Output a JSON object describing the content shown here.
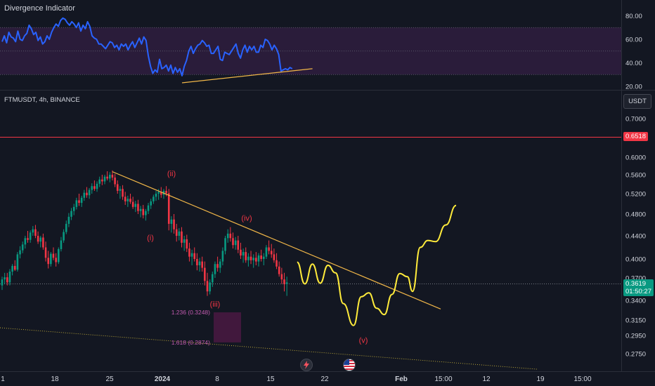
{
  "indicator": {
    "title": "Divergence Indicator",
    "axis_ticks": [
      {
        "value": 80,
        "label": "80.00"
      },
      {
        "value": 60,
        "label": "60.00"
      },
      {
        "value": 40,
        "label": "40.00"
      },
      {
        "value": 20,
        "label": "20.00"
      }
    ],
    "band": [
      30,
      70
    ],
    "midline": 50,
    "line_color": "#2962ff",
    "band_color": "#2a1c3a",
    "series": [
      58,
      63,
      57,
      66,
      62,
      61,
      58,
      67,
      60,
      59,
      63,
      65,
      72,
      69,
      64,
      66,
      59,
      62,
      56,
      58,
      63,
      60,
      66,
      70,
      73,
      71,
      76,
      78,
      77,
      74,
      72,
      75,
      73,
      70,
      74,
      67,
      72,
      69,
      75,
      71,
      63,
      61,
      60,
      56,
      56,
      54,
      52,
      55,
      58,
      57,
      53,
      55,
      51,
      56,
      54,
      56,
      51,
      55,
      58,
      53,
      57,
      61,
      56,
      62,
      59,
      46,
      37,
      31,
      34,
      32,
      43,
      35,
      36,
      38,
      33,
      38,
      31,
      36,
      32,
      35,
      29,
      37,
      42,
      50,
      54,
      48,
      52,
      55,
      56,
      59,
      57,
      54,
      55,
      48,
      48,
      51,
      54,
      43,
      42,
      49,
      48,
      47,
      50,
      53,
      56,
      48,
      44,
      51,
      55,
      49,
      54,
      51,
      54,
      49,
      49,
      55,
      53,
      60,
      59,
      56,
      51,
      55,
      52,
      47,
      33,
      34,
      35,
      34,
      36,
      35
    ],
    "divergence_line": {
      "from": {
        "index": 80,
        "value": 23
      },
      "to": {
        "index": 138,
        "value": 35
      }
    }
  },
  "chart": {
    "symbol": "FTMUSDT, 4h, BINANCE",
    "currency_button": "USDT",
    "price_ticks": [
      {
        "value": 0.7,
        "label": "0.7000"
      },
      {
        "value": 0.6,
        "label": "0.6000"
      },
      {
        "value": 0.56,
        "label": "0.5600"
      },
      {
        "value": 0.52,
        "label": "0.5200"
      },
      {
        "value": 0.48,
        "label": "0.4800"
      },
      {
        "value": 0.44,
        "label": "0.4400"
      },
      {
        "value": 0.4,
        "label": "0.4000"
      },
      {
        "value": 0.37,
        "label": "0.3700"
      },
      {
        "value": 0.34,
        "label": "0.3400"
      },
      {
        "value": 0.315,
        "label": "0.3150"
      },
      {
        "value": 0.295,
        "label": "0.2950"
      },
      {
        "value": 0.275,
        "label": "0.2750"
      }
    ],
    "resistance": {
      "price": 0.6518,
      "label": "0.6518",
      "color": "#f23645"
    },
    "current": {
      "price": 0.3619,
      "label": "0.3619",
      "countdown": "01:50:27",
      "color": "#089981"
    },
    "time_labels": [
      "1",
      "18",
      "25",
      "2024",
      "8",
      "15",
      "22",
      "Feb",
      "15:00",
      "12",
      "19",
      "15:00"
    ],
    "wave_labels": [
      {
        "text": "(i)",
        "bar": 55,
        "price": 0.432
      },
      {
        "text": "(ii)",
        "bar": 64,
        "price": 0.557
      },
      {
        "text": "(iii)",
        "bar": 82,
        "price": 0.332
      },
      {
        "text": "(iv)",
        "bar": 93,
        "price": 0.468
      },
      {
        "text": "(v)",
        "bar": 0,
        "price": 0.287
      }
    ],
    "fib_levels": [
      {
        "text": "1.236 (0.3248)",
        "price": 0.3248
      },
      {
        "text": "1.618 (0.2874)",
        "price": 0.2874
      }
    ],
    "fib_zone": {
      "top": 0.3248,
      "bottom": 0.2874
    },
    "trendline": {
      "from": {
        "bar": 43,
        "price": 0.567
      },
      "to": {
        "bar": 0,
        "price": 0.329
      }
    },
    "lower_line": {
      "from": {
        "bar": 0,
        "price": 0.305
      },
      "to": {
        "bar": 0,
        "price": 0.258
      }
    },
    "projection_color": "#ffeb3b",
    "projection": [
      [
        115,
        0.395
      ],
      [
        118,
        0.362
      ],
      [
        121,
        0.392
      ],
      [
        124,
        0.363
      ],
      [
        127,
        0.39
      ],
      [
        130,
        0.378
      ],
      [
        133,
        0.336
      ],
      [
        137,
        0.308
      ],
      [
        140,
        0.345
      ],
      [
        143,
        0.35
      ],
      [
        146,
        0.33
      ],
      [
        149,
        0.322
      ],
      [
        152,
        0.348
      ],
      [
        155,
        0.377
      ],
      [
        158,
        0.372
      ],
      [
        160,
        0.352
      ],
      [
        163,
        0.42
      ],
      [
        166,
        0.432
      ],
      [
        169,
        0.43
      ],
      [
        173,
        0.46
      ],
      [
        177,
        0.497
      ]
    ],
    "candles": [
      [
        0.36,
        0.372,
        0.354,
        0.368
      ],
      [
        0.368,
        0.378,
        0.362,
        0.371
      ],
      [
        0.371,
        0.378,
        0.36,
        0.364
      ],
      [
        0.364,
        0.384,
        0.36,
        0.38
      ],
      [
        0.38,
        0.392,
        0.374,
        0.389
      ],
      [
        0.389,
        0.398,
        0.381,
        0.383
      ],
      [
        0.383,
        0.412,
        0.38,
        0.408
      ],
      [
        0.408,
        0.422,
        0.401,
        0.415
      ],
      [
        0.415,
        0.43,
        0.41,
        0.425
      ],
      [
        0.425,
        0.44,
        0.418,
        0.436
      ],
      [
        0.436,
        0.449,
        0.428,
        0.433
      ],
      [
        0.433,
        0.45,
        0.428,
        0.446
      ],
      [
        0.446,
        0.458,
        0.44,
        0.452
      ],
      [
        0.452,
        0.46,
        0.436,
        0.44
      ],
      [
        0.44,
        0.448,
        0.426,
        0.43
      ],
      [
        0.43,
        0.44,
        0.42,
        0.437
      ],
      [
        0.437,
        0.444,
        0.416,
        0.42
      ],
      [
        0.42,
        0.43,
        0.396,
        0.402
      ],
      [
        0.402,
        0.414,
        0.385,
        0.392
      ],
      [
        0.392,
        0.412,
        0.388,
        0.409
      ],
      [
        0.409,
        0.42,
        0.398,
        0.402
      ],
      [
        0.402,
        0.41,
        0.388,
        0.395
      ],
      [
        0.395,
        0.42,
        0.392,
        0.417
      ],
      [
        0.417,
        0.438,
        0.413,
        0.432
      ],
      [
        0.432,
        0.452,
        0.428,
        0.447
      ],
      [
        0.447,
        0.468,
        0.443,
        0.462
      ],
      [
        0.462,
        0.482,
        0.456,
        0.475
      ],
      [
        0.475,
        0.492,
        0.469,
        0.486
      ],
      [
        0.486,
        0.5,
        0.478,
        0.494
      ],
      [
        0.494,
        0.512,
        0.489,
        0.507
      ],
      [
        0.507,
        0.52,
        0.496,
        0.502
      ],
      [
        0.502,
        0.516,
        0.494,
        0.512
      ],
      [
        0.512,
        0.528,
        0.506,
        0.522
      ],
      [
        0.522,
        0.534,
        0.512,
        0.517
      ],
      [
        0.517,
        0.532,
        0.51,
        0.528
      ],
      [
        0.528,
        0.542,
        0.52,
        0.536
      ],
      [
        0.536,
        0.548,
        0.526,
        0.53
      ],
      [
        0.53,
        0.546,
        0.524,
        0.541
      ],
      [
        0.541,
        0.556,
        0.534,
        0.55
      ],
      [
        0.55,
        0.56,
        0.538,
        0.546
      ],
      [
        0.546,
        0.56,
        0.54,
        0.556
      ],
      [
        0.556,
        0.568,
        0.548,
        0.552
      ],
      [
        0.552,
        0.566,
        0.544,
        0.56
      ],
      [
        0.56,
        0.57,
        0.548,
        0.554
      ],
      [
        0.554,
        0.562,
        0.534,
        0.54
      ],
      [
        0.54,
        0.548,
        0.52,
        0.526
      ],
      [
        0.526,
        0.536,
        0.51,
        0.53
      ],
      [
        0.53,
        0.538,
        0.508,
        0.514
      ],
      [
        0.514,
        0.524,
        0.498,
        0.505
      ],
      [
        0.505,
        0.516,
        0.494,
        0.51
      ],
      [
        0.51,
        0.52,
        0.5,
        0.504
      ],
      [
        0.504,
        0.514,
        0.49,
        0.494
      ],
      [
        0.494,
        0.506,
        0.484,
        0.5
      ],
      [
        0.5,
        0.508,
        0.48,
        0.486
      ],
      [
        0.486,
        0.496,
        0.474,
        0.49
      ],
      [
        0.49,
        0.498,
        0.472,
        0.478
      ],
      [
        0.478,
        0.49,
        0.468,
        0.486
      ],
      [
        0.486,
        0.502,
        0.48,
        0.497
      ],
      [
        0.497,
        0.51,
        0.49,
        0.505
      ],
      [
        0.505,
        0.518,
        0.5,
        0.514
      ],
      [
        0.514,
        0.526,
        0.506,
        0.52
      ],
      [
        0.52,
        0.53,
        0.508,
        0.524
      ],
      [
        0.524,
        0.534,
        0.512,
        0.518
      ],
      [
        0.518,
        0.53,
        0.51,
        0.526
      ],
      [
        0.526,
        0.536,
        0.515,
        0.521
      ],
      [
        0.521,
        0.53,
        0.45,
        0.462
      ],
      [
        0.462,
        0.476,
        0.446,
        0.47
      ],
      [
        0.47,
        0.48,
        0.444,
        0.452
      ],
      [
        0.452,
        0.462,
        0.43,
        0.44
      ],
      [
        0.44,
        0.454,
        0.432,
        0.448
      ],
      [
        0.448,
        0.456,
        0.42,
        0.428
      ],
      [
        0.428,
        0.44,
        0.414,
        0.434
      ],
      [
        0.434,
        0.442,
        0.412,
        0.418
      ],
      [
        0.418,
        0.428,
        0.396,
        0.404
      ],
      [
        0.404,
        0.416,
        0.39,
        0.41
      ],
      [
        0.41,
        0.42,
        0.396,
        0.4
      ],
      [
        0.4,
        0.41,
        0.382,
        0.39
      ],
      [
        0.39,
        0.402,
        0.38,
        0.396
      ],
      [
        0.396,
        0.404,
        0.38,
        0.386
      ],
      [
        0.386,
        0.396,
        0.36,
        0.366
      ],
      [
        0.366,
        0.378,
        0.346,
        0.352
      ],
      [
        0.352,
        0.368,
        0.348,
        0.364
      ],
      [
        0.364,
        0.38,
        0.358,
        0.376
      ],
      [
        0.376,
        0.396,
        0.37,
        0.392
      ],
      [
        0.392,
        0.404,
        0.38,
        0.386
      ],
      [
        0.386,
        0.4,
        0.378,
        0.396
      ],
      [
        0.396,
        0.42,
        0.39,
        0.414
      ],
      [
        0.414,
        0.44,
        0.408,
        0.436
      ],
      [
        0.436,
        0.452,
        0.428,
        0.444
      ],
      [
        0.444,
        0.456,
        0.43,
        0.436
      ],
      [
        0.436,
        0.446,
        0.418,
        0.424
      ],
      [
        0.424,
        0.438,
        0.416,
        0.432
      ],
      [
        0.432,
        0.44,
        0.41,
        0.416
      ],
      [
        0.416,
        0.428,
        0.4,
        0.406
      ],
      [
        0.406,
        0.418,
        0.394,
        0.412
      ],
      [
        0.412,
        0.42,
        0.394,
        0.398
      ],
      [
        0.398,
        0.41,
        0.388,
        0.404
      ],
      [
        0.404,
        0.414,
        0.392,
        0.398
      ],
      [
        0.398,
        0.408,
        0.386,
        0.402
      ],
      [
        0.402,
        0.412,
        0.39,
        0.396
      ],
      [
        0.396,
        0.41,
        0.388,
        0.406
      ],
      [
        0.406,
        0.416,
        0.396,
        0.4
      ],
      [
        0.4,
        0.41,
        0.39,
        0.404
      ],
      [
        0.404,
        0.424,
        0.4,
        0.42
      ],
      [
        0.42,
        0.432,
        0.408,
        0.414
      ],
      [
        0.414,
        0.426,
        0.402,
        0.408
      ],
      [
        0.408,
        0.418,
        0.394,
        0.398
      ],
      [
        0.398,
        0.41,
        0.384,
        0.388
      ],
      [
        0.388,
        0.396,
        0.372,
        0.376
      ],
      [
        0.376,
        0.386,
        0.362,
        0.368
      ],
      [
        0.368,
        0.378,
        0.352,
        0.362
      ],
      [
        0.362,
        0.372,
        0.346,
        0.364
      ]
    ]
  },
  "bottom_icons": [
    "lightning-icon",
    "us-flag-icon"
  ]
}
